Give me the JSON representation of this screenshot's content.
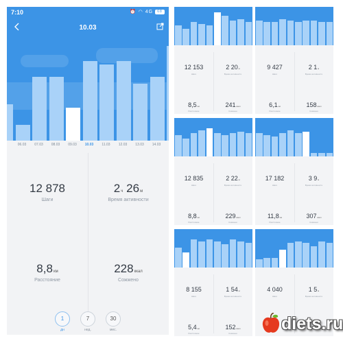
{
  "main": {
    "status_time": "7:10",
    "status_network": "4G",
    "status_battery": "68",
    "date": "10.03",
    "x_labels": [
      "06.03",
      "07.03",
      "08.03",
      "09.03",
      "10.03",
      "11.03",
      "12.03",
      "13.03",
      "14.03"
    ],
    "selected_label_index": 4,
    "bar_values": [
      0.35,
      0.15,
      0.62,
      0.62,
      0.32,
      0.77,
      0.74,
      0.77,
      0.55,
      0.62,
      0.92
    ],
    "selected_bar_index": 4,
    "steps_value": "12 878",
    "steps_label": "Шаги",
    "active_value": "2",
    "active_hours_unit": "ч",
    "active_value_min": "26",
    "active_min_unit": "м",
    "active_label": "Время активности",
    "distance_value": "8,8",
    "distance_unit": "км",
    "distance_label": "Расстояние",
    "calories_value": "228",
    "calories_unit": "ккал",
    "calories_label": "Сожжено",
    "ranges": [
      {
        "value": "1",
        "label": "дн"
      },
      {
        "value": "7",
        "label": "нед."
      },
      {
        "value": "30",
        "label": "мес."
      }
    ]
  },
  "minis": [
    {
      "bars": [
        0.6,
        0.5,
        0.7,
        0.65,
        0.6,
        1.0,
        0.9,
        0.75,
        0.8,
        0.7
      ],
      "sel": 5,
      "steps": "12 153",
      "active": "2 20",
      "active_unit": "м",
      "distance": "8,5",
      "distance_unit": "км",
      "calories": "241",
      "calories_unit": "ккал"
    },
    {
      "bars": [
        0.75,
        0.7,
        0.7,
        0.8,
        0.75,
        0.7,
        0.75,
        0.75,
        0.7,
        0.7
      ],
      "sel": -1,
      "steps": "9 427",
      "active": "2 1",
      "active_unit": "м",
      "distance": "6,1",
      "distance_unit": "км",
      "calories": "158",
      "calories_unit": "ккал"
    },
    {
      "bars": [
        0.65,
        0.55,
        0.7,
        0.8,
        0.85,
        0.7,
        0.65,
        0.7,
        0.75,
        0.7
      ],
      "sel": 4,
      "steps": "12 835",
      "active": "2 22",
      "active_unit": "м",
      "distance": "8,8",
      "distance_unit": "км",
      "calories": "229",
      "calories_unit": "ккал"
    },
    {
      "bars": [
        0.7,
        0.65,
        0.6,
        0.7,
        0.8,
        0.7,
        0.75,
        0.1,
        0.1,
        0.1
      ],
      "sel": 6,
      "steps": "17 182",
      "active": "3 9",
      "active_unit": "м",
      "distance": "11,8",
      "distance_unit": "км",
      "calories": "307",
      "calories_unit": "ккал"
    },
    {
      "bars": [
        0.6,
        0.45,
        0.85,
        0.8,
        0.85,
        0.8,
        0.7,
        0.85,
        0.8,
        0.75
      ],
      "sel": 1,
      "steps": "8 155",
      "active": "1 54",
      "active_unit": "м",
      "distance": "5,4",
      "distance_unit": "км",
      "calories": "152",
      "calories_unit": "ккал"
    },
    {
      "bars": [
        0.25,
        0.3,
        0.3,
        0.55,
        0.75,
        0.8,
        0.75,
        0.65,
        0.8,
        0.75
      ],
      "sel": 3,
      "steps": "4 040",
      "active": "1 5",
      "active_unit": "м",
      "distance": "",
      "distance_unit": "",
      "calories": "",
      "calories_unit": ""
    }
  ],
  "mini_labels": {
    "steps": "Шаги",
    "active": "Время активности",
    "distance": "Расстояние",
    "calories": "Сожжено"
  },
  "watermark": "diets.ru",
  "colors": {
    "header_blue": "#3c94e6",
    "bar_light": "#a9d2f8",
    "bar_selected": "#ffffff",
    "background": "#f2f3f5"
  }
}
